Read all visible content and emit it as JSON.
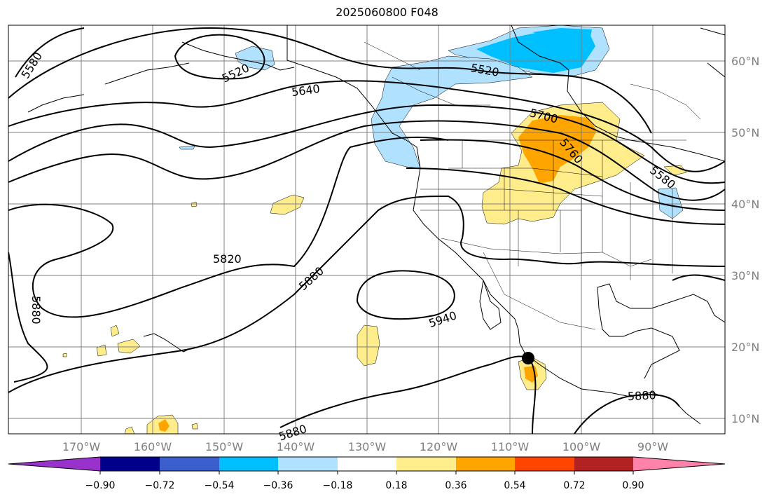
{
  "title": "2025060800 F048",
  "palette": {
    "neg_090": "#9932cc",
    "neg_072": "#00008b",
    "neg_054": "#3a5fcd",
    "neg_036": "#00bfff",
    "neg_018": "#b0e2ff",
    "zero": "#ffffff",
    "pos_018": "#ffec8b",
    "pos_036": "#ffa500",
    "pos_054": "#ff4500",
    "pos_072": "#b22222",
    "pos_090": "#ff82ab",
    "contour": "#000000",
    "grid": "#808080"
  },
  "axes": {
    "lon_labels": [
      "170°W",
      "160°W",
      "150°W",
      "140°W",
      "130°W",
      "120°W",
      "110°W",
      "100°W",
      "90°W"
    ],
    "lat_labels": [
      "60°N",
      "50°N",
      "40°N",
      "30°N",
      "20°N",
      "10°N"
    ]
  },
  "contour_labels": [
    "5580",
    "5520",
    "5640",
    "5520",
    "5700",
    "5760",
    "5580",
    "5820",
    "5880",
    "5940",
    "5880",
    "5880",
    "5880"
  ],
  "colorbar": {
    "ticks": [
      "−0.90",
      "−0.72",
      "−0.54",
      "−0.36",
      "−0.18",
      "0.18",
      "0.36",
      "0.54",
      "0.72",
      "0.90"
    ]
  }
}
